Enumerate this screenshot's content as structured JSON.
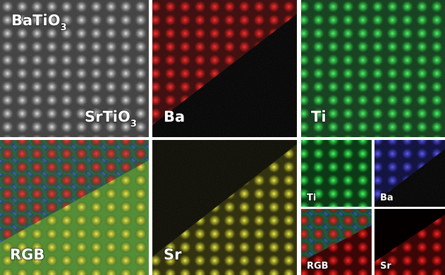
{
  "panels": [
    {
      "labels": [
        {
          "text": "BaTiO",
          "subscript": "3"
        },
        {
          "text": "SrTiO",
          "subscript": "3"
        }
      ]
    },
    {
      "labels": [
        {
          "text": "Ba"
        }
      ]
    },
    {
      "labels": [
        {
          "text": "Ti"
        }
      ]
    },
    {
      "labels": [
        {
          "text": "RGB"
        }
      ]
    },
    {
      "labels": [
        {
          "text": "Sr"
        }
      ]
    },
    {
      "labels": [
        {
          "text": "Ti"
        }
      ]
    },
    {
      "labels": [
        {
          "text": "Ba"
        }
      ]
    },
    {
      "labels": [
        {
          "text": "RGB"
        }
      ]
    },
    {
      "labels": [
        {
          "text": "Sr"
        }
      ]
    }
  ]
}
